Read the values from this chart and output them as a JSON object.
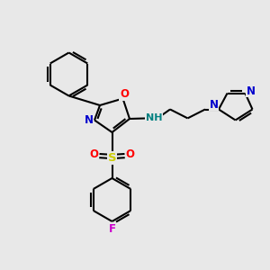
{
  "bg_color": "#e8e8e8",
  "bond_color": "#000000",
  "bond_width": 1.5,
  "atom_colors": {
    "O": "#ff0000",
    "N": "#0000cc",
    "N_amine": "#008080",
    "S": "#cccc00",
    "F": "#cc00cc",
    "C": "#000000"
  },
  "figsize": [
    3.0,
    3.0
  ],
  "dpi": 100
}
